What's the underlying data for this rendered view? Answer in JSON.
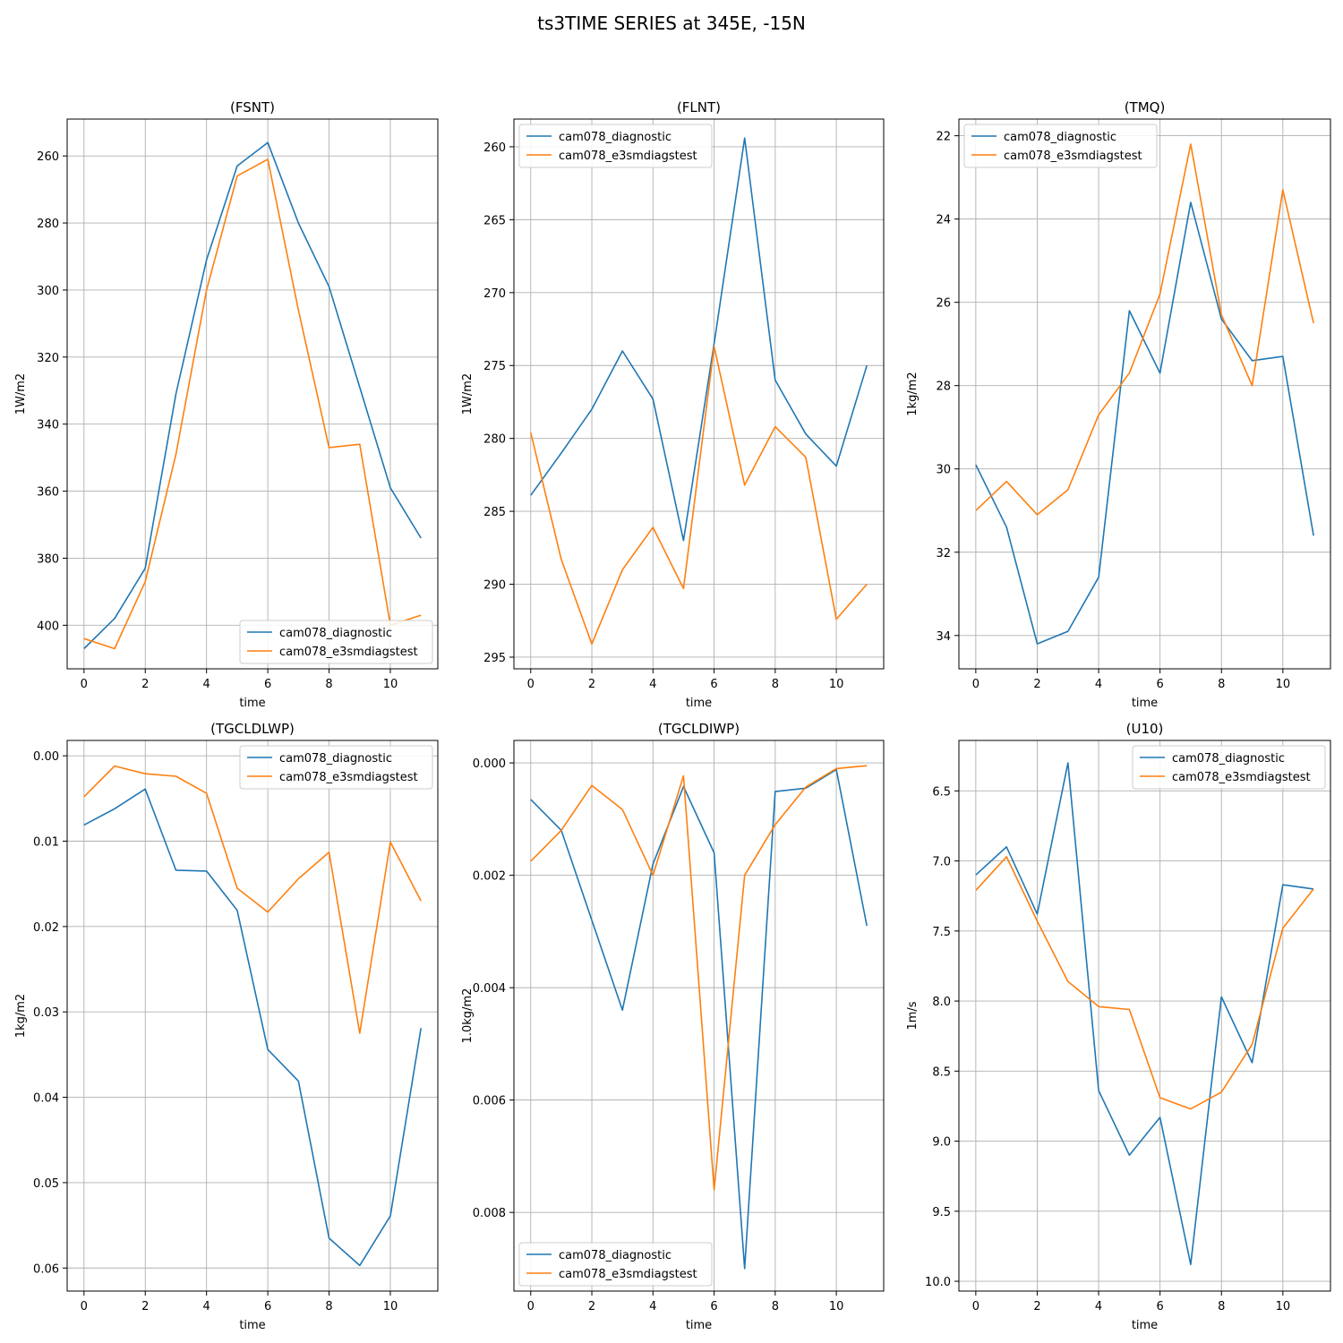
{
  "figure": {
    "suptitle": "ts3TIME SERIES at 345E, -15N",
    "colors": {
      "series_0": "#1f77b4",
      "series_1": "#ff7f0e",
      "grid": "#b0b0b0"
    }
  },
  "chart_data": [
    {
      "type": "line",
      "title": "(FSNT)",
      "xlabel": "time",
      "ylabel": "1W/m2",
      "y_inverted": true,
      "grid": true,
      "legend_position": "lower-right",
      "x": [
        0,
        1,
        2,
        3,
        4,
        5,
        6,
        7,
        8,
        9,
        10,
        11
      ],
      "xlim": [
        -0.55,
        11.55
      ],
      "ylim": [
        413,
        249
      ],
      "xticks": [
        0,
        2,
        4,
        6,
        8,
        10
      ],
      "xtick_labels": [
        "0",
        "2",
        "4",
        "6",
        "8",
        "10"
      ],
      "yticks": [
        260,
        280,
        300,
        320,
        340,
        360,
        380,
        400
      ],
      "ytick_labels": [
        "260",
        "280",
        "300",
        "320",
        "340",
        "360",
        "380",
        "400"
      ],
      "series": [
        {
          "name": "cam078_diagnostic",
          "values": [
            407,
            398,
            383,
            331,
            291,
            263,
            256,
            280,
            299,
            329,
            359,
            374
          ]
        },
        {
          "name": "cam078_e3smdiagstest",
          "values": [
            404,
            407,
            387,
            349,
            300,
            266,
            261,
            306,
            347,
            346,
            400,
            397
          ]
        }
      ]
    },
    {
      "type": "line",
      "title": "(FLNT)",
      "xlabel": "time",
      "ylabel": "1W/m2",
      "y_inverted": true,
      "grid": true,
      "legend_position": "upper-left",
      "x": [
        0,
        1,
        2,
        3,
        4,
        5,
        6,
        7,
        8,
        9,
        10,
        11
      ],
      "xlim": [
        -0.55,
        11.55
      ],
      "ylim": [
        295.8,
        258.1
      ],
      "xticks": [
        0,
        2,
        4,
        6,
        8,
        10
      ],
      "xtick_labels": [
        "0",
        "2",
        "4",
        "6",
        "8",
        "10"
      ],
      "yticks": [
        260,
        265,
        270,
        275,
        280,
        285,
        290,
        295
      ],
      "ytick_labels": [
        "260",
        "265",
        "270",
        "275",
        "280",
        "285",
        "290",
        "295"
      ],
      "series": [
        {
          "name": "cam078_diagnostic",
          "values": [
            283.9,
            281.0,
            278.0,
            274.0,
            277.3,
            287.0,
            273.5,
            259.4,
            276.0,
            279.7,
            281.9,
            275.0
          ]
        },
        {
          "name": "cam078_e3smdiagstest",
          "values": [
            279.6,
            288.3,
            294.1,
            289.0,
            286.1,
            290.3,
            273.7,
            283.2,
            279.2,
            281.3,
            292.4,
            290.0
          ]
        }
      ]
    },
    {
      "type": "line",
      "title": "(TMQ)",
      "xlabel": "time",
      "ylabel": "1kg/m2",
      "y_inverted": true,
      "grid": true,
      "legend_position": "upper-left",
      "x": [
        0,
        1,
        2,
        3,
        4,
        5,
        6,
        7,
        8,
        9,
        10,
        11
      ],
      "xlim": [
        -0.55,
        11.55
      ],
      "ylim": [
        34.8,
        21.6
      ],
      "xticks": [
        0,
        2,
        4,
        6,
        8,
        10
      ],
      "xtick_labels": [
        "0",
        "2",
        "4",
        "6",
        "8",
        "10"
      ],
      "yticks": [
        22,
        24,
        26,
        28,
        30,
        32,
        34
      ],
      "ytick_labels": [
        "22",
        "24",
        "26",
        "28",
        "30",
        "32",
        "34"
      ],
      "series": [
        {
          "name": "cam078_diagnostic",
          "values": [
            29.9,
            31.4,
            34.2,
            33.9,
            32.6,
            26.2,
            27.7,
            23.6,
            26.4,
            27.4,
            27.3,
            31.6
          ]
        },
        {
          "name": "cam078_e3smdiagstest",
          "values": [
            31.0,
            30.3,
            31.1,
            30.5,
            28.7,
            27.7,
            25.8,
            22.2,
            26.3,
            28.0,
            23.3,
            26.5
          ]
        }
      ]
    },
    {
      "type": "line",
      "title": "(TGCLDLWP)",
      "xlabel": "time",
      "ylabel": "1kg/m2",
      "y_inverted": true,
      "grid": true,
      "legend_position": "upper-right",
      "x": [
        0,
        1,
        2,
        3,
        4,
        5,
        6,
        7,
        8,
        9,
        10,
        11
      ],
      "xlim": [
        -0.55,
        11.55
      ],
      "ylim": [
        0.0627,
        -0.0018
      ],
      "xticks": [
        0,
        2,
        4,
        6,
        8,
        10
      ],
      "xtick_labels": [
        "0",
        "2",
        "4",
        "6",
        "8",
        "10"
      ],
      "yticks": [
        0,
        0.01,
        0.02,
        0.03,
        0.04,
        0.05,
        0.06
      ],
      "ytick_labels": [
        "0.00",
        "0.01",
        "0.02",
        "0.03",
        "0.04",
        "0.05",
        "0.06"
      ],
      "series": [
        {
          "name": "cam078_diagnostic",
          "values": [
            0.0081,
            0.0062,
            0.0039,
            0.0134,
            0.0135,
            0.0181,
            0.0344,
            0.0381,
            0.0565,
            0.0597,
            0.0539,
            0.0319
          ]
        },
        {
          "name": "cam078_e3smdiagstest",
          "values": [
            0.0048,
            0.0012,
            0.0021,
            0.0024,
            0.0044,
            0.0155,
            0.0183,
            0.0144,
            0.0113,
            0.0325,
            0.0101,
            0.017
          ]
        }
      ]
    },
    {
      "type": "line",
      "title": "(TGCLDIWP)",
      "xlabel": "time",
      "ylabel": "1.0kg/m2",
      "y_inverted": true,
      "grid": true,
      "legend_position": "lower-left",
      "x": [
        0,
        1,
        2,
        3,
        4,
        5,
        6,
        7,
        8,
        9,
        10,
        11
      ],
      "xlim": [
        -0.55,
        11.55
      ],
      "ylim": [
        0.0094,
        -0.0004
      ],
      "xticks": [
        0,
        2,
        4,
        6,
        8,
        10
      ],
      "xtick_labels": [
        "0",
        "2",
        "4",
        "6",
        "8",
        "10"
      ],
      "yticks": [
        0,
        0.002,
        0.004,
        0.006,
        0.008
      ],
      "ytick_labels": [
        "0.000",
        "0.002",
        "0.004",
        "0.006",
        "0.008"
      ],
      "series": [
        {
          "name": "cam078_diagnostic",
          "values": [
            0.00065,
            0.0012,
            0.0028,
            0.0044,
            0.0018,
            0.00042,
            0.0016,
            0.009,
            0.00051,
            0.00045,
            0.00012,
            0.0029
          ]
        },
        {
          "name": "cam078_e3smdiagstest",
          "values": [
            0.00175,
            0.0012,
            0.0004,
            0.00083,
            0.002,
            0.00023,
            0.0076,
            0.002,
            0.0011,
            0.00043,
            0.0001,
            5e-05
          ]
        }
      ]
    },
    {
      "type": "line",
      "title": "(U10)",
      "xlabel": "time",
      "ylabel": "1m/s",
      "y_inverted": true,
      "grid": true,
      "legend_position": "upper-right",
      "x": [
        0,
        1,
        2,
        3,
        4,
        5,
        6,
        7,
        8,
        9,
        10,
        11
      ],
      "xlim": [
        -0.55,
        11.55
      ],
      "ylim": [
        10.07,
        6.14
      ],
      "xticks": [
        0,
        2,
        4,
        6,
        8,
        10
      ],
      "xtick_labels": [
        "0",
        "2",
        "4",
        "6",
        "8",
        "10"
      ],
      "yticks": [
        6.5,
        7.0,
        7.5,
        8.0,
        8.5,
        9.0,
        9.5,
        10.0
      ],
      "ytick_labels": [
        "6.5",
        "7.0",
        "7.5",
        "8.0",
        "8.5",
        "9.0",
        "9.5",
        "10.0"
      ],
      "series": [
        {
          "name": "cam078_diagnostic",
          "values": [
            7.1,
            6.9,
            7.38,
            6.3,
            8.64,
            9.1,
            8.83,
            9.88,
            7.97,
            8.44,
            7.17,
            7.2
          ]
        },
        {
          "name": "cam078_e3smdiagstest",
          "values": [
            7.21,
            6.97,
            7.43,
            7.86,
            8.04,
            8.06,
            8.69,
            8.77,
            8.65,
            8.31,
            7.48,
            7.2
          ]
        }
      ]
    }
  ]
}
